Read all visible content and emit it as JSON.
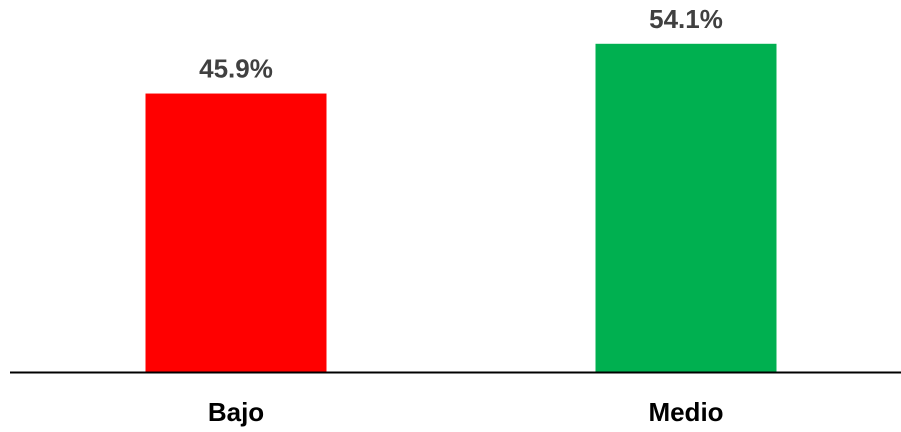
{
  "chart_data": {
    "type": "bar",
    "categories": [
      "Bajo",
      "Medio"
    ],
    "values": [
      45.9,
      54.1
    ],
    "value_labels": [
      "45.9%",
      "54.1%"
    ],
    "colors": [
      "#ff0000",
      "#00b050"
    ],
    "ylim": [
      0,
      60
    ],
    "grid": false,
    "legend": "none"
  }
}
